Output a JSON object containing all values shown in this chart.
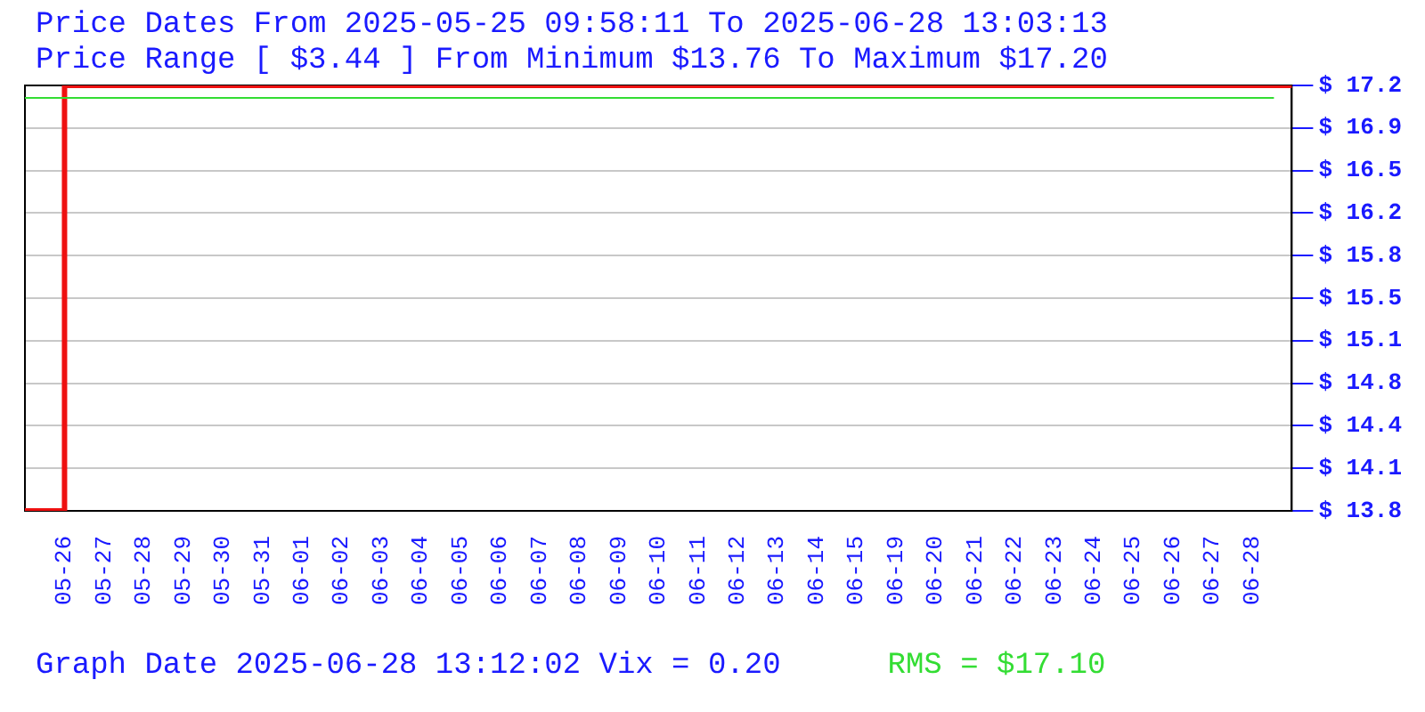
{
  "chart_data": {
    "type": "step",
    "title": "Price Dates From 2025-05-25 09:58:11 To 2025-06-28 13:03:13",
    "subtitle": "Price Range [ $3.44 ] From Minimum $13.76 To Maximum $17.20",
    "categories": [
      null,
      "05-26",
      "05-27",
      "05-28",
      "05-29",
      "05-30",
      "05-31",
      "06-01",
      "06-02",
      "06-03",
      "06-04",
      "06-05",
      "06-06",
      "06-07",
      "06-08",
      "06-09",
      "06-10",
      "06-11",
      "06-12",
      "06-13",
      "06-14",
      "06-15",
      "06-19",
      "06-20",
      "06-21",
      "06-22",
      "06-23",
      "06-24",
      "06-25",
      "06-26",
      "06-27",
      "06-28",
      null
    ],
    "series": [
      {
        "color": "#ee1111",
        "values": [
          13.76,
          17.2,
          17.2,
          17.2,
          17.2,
          17.2,
          17.2,
          17.2,
          17.2,
          17.2,
          17.2,
          17.2,
          17.2,
          17.2,
          17.2,
          17.2,
          17.2,
          17.2,
          17.2,
          17.2,
          17.2,
          17.2,
          17.2,
          17.2,
          17.2,
          17.2,
          17.2,
          17.2,
          17.2,
          17.2,
          17.2,
          17.2,
          17.2
        ]
      }
    ],
    "ylim": [
      13.76,
      17.2
    ],
    "yticks": [
      {
        "value": 13.76,
        "label": "$ 13.8"
      },
      {
        "value": 14.104,
        "label": "$ 14.1"
      },
      {
        "value": 14.448,
        "label": "$ 14.4"
      },
      {
        "value": 14.792,
        "label": "$ 14.8"
      },
      {
        "value": 15.136,
        "label": "$ 15.1"
      },
      {
        "value": 15.48,
        "label": "$ 15.5"
      },
      {
        "value": 15.824,
        "label": "$ 15.8"
      },
      {
        "value": 16.168,
        "label": "$ 16.2"
      },
      {
        "value": 16.512,
        "label": "$ 16.5"
      },
      {
        "value": 16.856,
        "label": "$ 16.9"
      },
      {
        "value": 17.2,
        "label": "$ 17.2"
      }
    ],
    "ref_lines": [
      {
        "axis": "y",
        "value": 17.1,
        "color": "#33dd33"
      }
    ],
    "grid": "y",
    "legend": false,
    "marker": "none",
    "line_style": "solid",
    "annotations": [
      "Graph Date 2025-06-28 13:12:02 Vix = 0.20",
      "RMS = $17.10"
    ]
  }
}
